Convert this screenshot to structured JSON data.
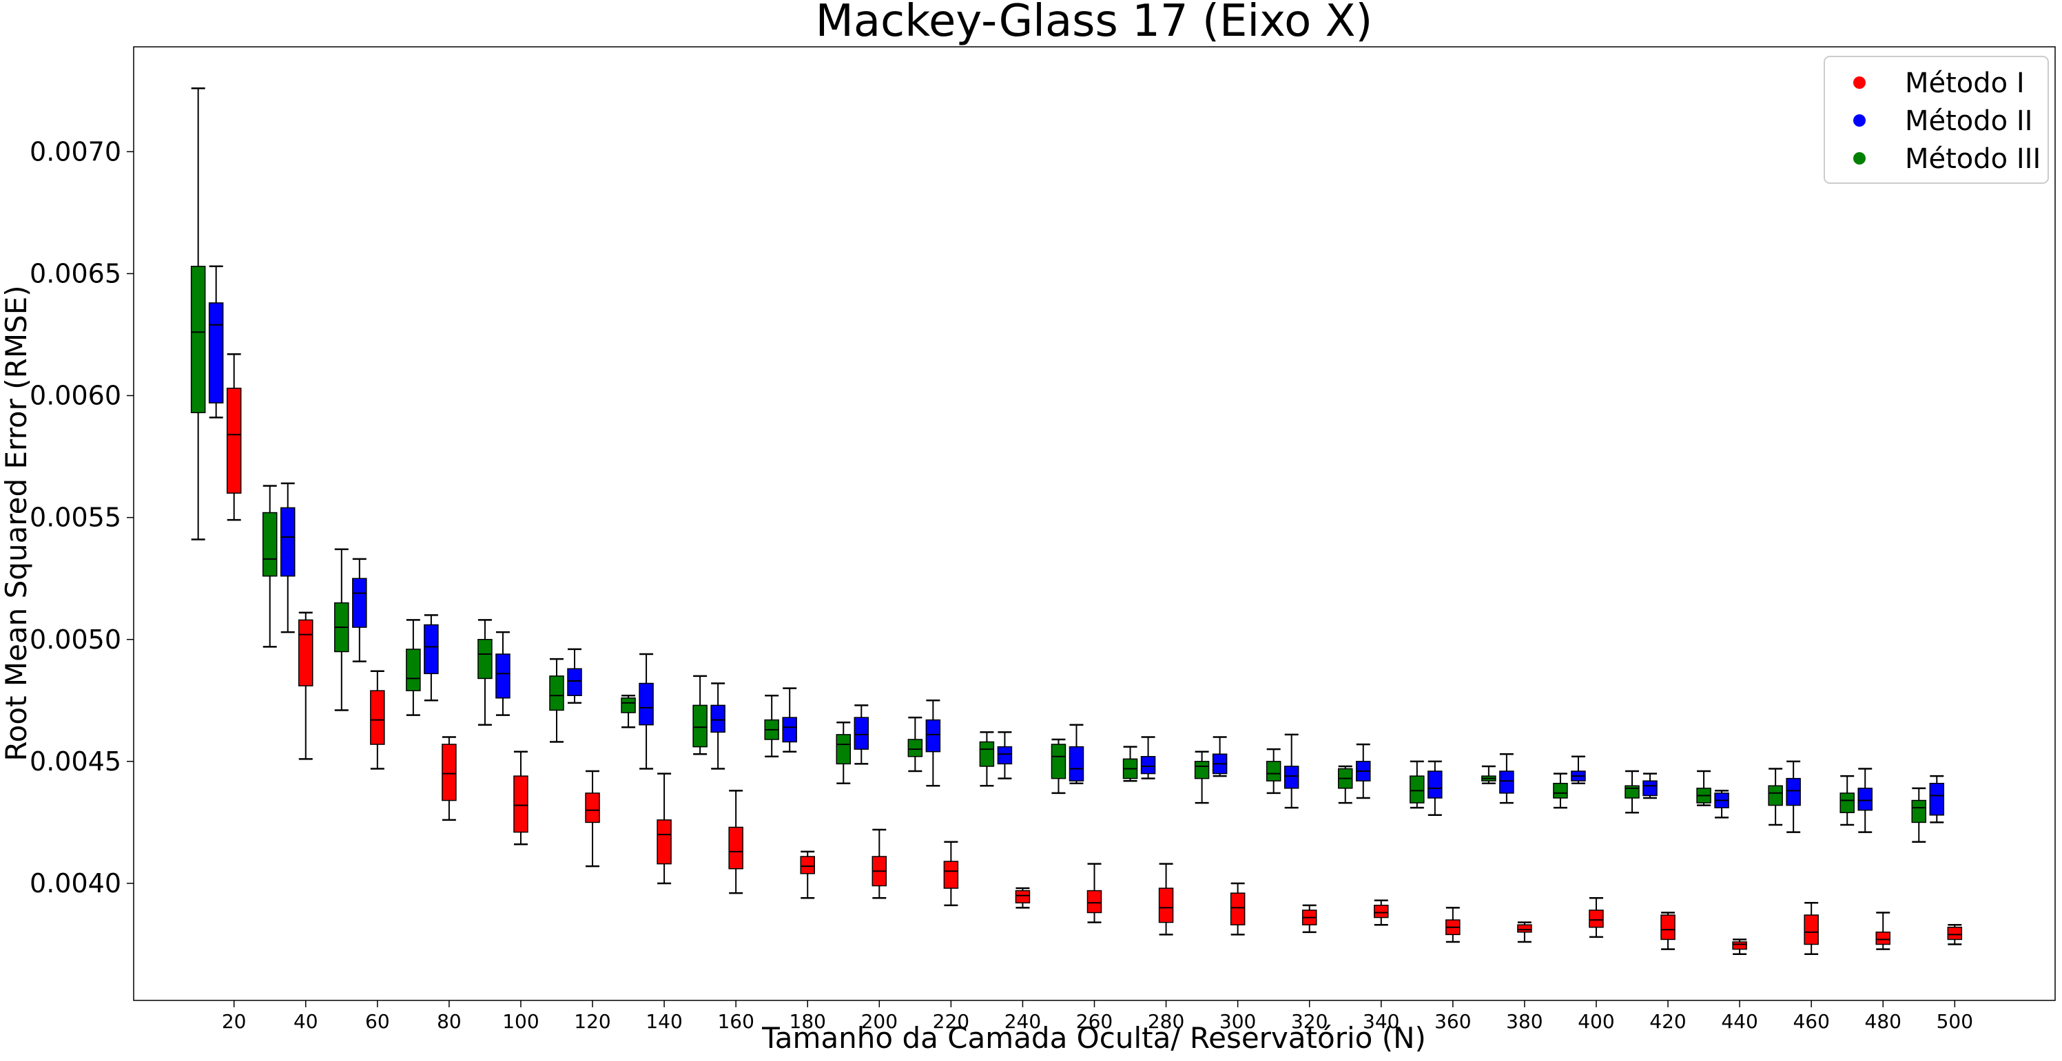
{
  "chart_data": {
    "type": "box",
    "title": "Mackey-Glass 17 (Eixo X)",
    "xlabel": "Tamanho da Camada Oculta/ Reservatório (N)",
    "ylabel": "Root Mean Squared Error (RMSE)",
    "categories": [
      20,
      40,
      60,
      80,
      100,
      120,
      140,
      160,
      180,
      200,
      220,
      240,
      260,
      280,
      300,
      320,
      340,
      360,
      380,
      400,
      420,
      440,
      460,
      480,
      500
    ],
    "xlim": [
      -8,
      528
    ],
    "ylim": [
      0.00352,
      0.00743
    ],
    "yticks": [
      0.004,
      0.0045,
      0.005,
      0.0055,
      0.006,
      0.0065,
      0.007
    ],
    "ytick_labels": [
      "0.0040",
      "0.0045",
      "0.0050",
      "0.0055",
      "0.0060",
      "0.0065",
      "0.0070"
    ],
    "legend": {
      "position": "top-right"
    },
    "series": [
      {
        "name": "Método I",
        "color": "#ff0000",
        "offset": 0,
        "boxes": [
          [
            0.00549,
            0.0056,
            0.00584,
            0.00603,
            0.00617
          ],
          [
            0.00451,
            0.00481,
            0.00502,
            0.00508,
            0.00511
          ],
          [
            0.00447,
            0.00457,
            0.00467,
            0.00479,
            0.00487
          ],
          [
            0.00426,
            0.00434,
            0.00445,
            0.00457,
            0.0046
          ],
          [
            0.00416,
            0.00421,
            0.00432,
            0.00444,
            0.00454
          ],
          [
            0.00407,
            0.00425,
            0.0043,
            0.00437,
            0.00446
          ],
          [
            0.004,
            0.00408,
            0.0042,
            0.00426,
            0.00445
          ],
          [
            0.00396,
            0.00406,
            0.00413,
            0.00423,
            0.00438
          ],
          [
            0.00394,
            0.00404,
            0.00407,
            0.00411,
            0.00413
          ],
          [
            0.00394,
            0.00399,
            0.00405,
            0.00411,
            0.00422
          ],
          [
            0.00391,
            0.00398,
            0.00405,
            0.00409,
            0.00417
          ],
          [
            0.0039,
            0.00392,
            0.00395,
            0.00397,
            0.00398
          ],
          [
            0.00384,
            0.00388,
            0.00392,
            0.00397,
            0.00408
          ],
          [
            0.00379,
            0.00384,
            0.0039,
            0.00398,
            0.00408
          ],
          [
            0.00379,
            0.00383,
            0.0039,
            0.00396,
            0.004
          ],
          [
            0.0038,
            0.00383,
            0.00386,
            0.00389,
            0.00391
          ],
          [
            0.00383,
            0.00386,
            0.00388,
            0.00391,
            0.00393
          ],
          [
            0.00376,
            0.00379,
            0.00382,
            0.00385,
            0.0039
          ],
          [
            0.00376,
            0.0038,
            0.00381,
            0.00383,
            0.00384
          ],
          [
            0.00378,
            0.00382,
            0.00385,
            0.00389,
            0.00394
          ],
          [
            0.00373,
            0.00377,
            0.00381,
            0.00387,
            0.00388
          ],
          [
            0.00371,
            0.00373,
            0.00375,
            0.00376,
            0.00377
          ],
          [
            0.00371,
            0.00375,
            0.0038,
            0.00387,
            0.00392
          ],
          [
            0.00373,
            0.00375,
            0.00377,
            0.0038,
            0.00388
          ],
          [
            0.00375,
            0.00377,
            0.00379,
            0.00382,
            0.00383
          ]
        ]
      },
      {
        "name": "Método II",
        "color": "#0000ff",
        "offset": -5,
        "boxes": [
          [
            0.00591,
            0.00597,
            0.00629,
            0.00638,
            0.00653
          ],
          [
            0.00503,
            0.00526,
            0.00542,
            0.00554,
            0.00564
          ],
          [
            0.00491,
            0.00505,
            0.00519,
            0.00525,
            0.00533
          ],
          [
            0.00475,
            0.00486,
            0.00497,
            0.00506,
            0.0051
          ],
          [
            0.00469,
            0.00476,
            0.00486,
            0.00494,
            0.00503
          ],
          [
            0.00474,
            0.00477,
            0.00483,
            0.00488,
            0.00496
          ],
          [
            0.00447,
            0.00465,
            0.00472,
            0.00482,
            0.00494
          ],
          [
            0.00447,
            0.00462,
            0.00467,
            0.00473,
            0.00482
          ],
          [
            0.00454,
            0.00458,
            0.00464,
            0.00468,
            0.0048
          ],
          [
            0.00449,
            0.00455,
            0.00461,
            0.00468,
            0.00473
          ],
          [
            0.0044,
            0.00454,
            0.00461,
            0.00467,
            0.00475
          ],
          [
            0.00443,
            0.00449,
            0.00453,
            0.00456,
            0.00462
          ],
          [
            0.00441,
            0.00442,
            0.00447,
            0.00456,
            0.00465
          ],
          [
            0.00443,
            0.00445,
            0.00448,
            0.00452,
            0.0046
          ],
          [
            0.00444,
            0.00445,
            0.00449,
            0.00453,
            0.0046
          ],
          [
            0.00431,
            0.00439,
            0.00444,
            0.00448,
            0.00461
          ],
          [
            0.00435,
            0.00442,
            0.00446,
            0.0045,
            0.00457
          ],
          [
            0.00428,
            0.00435,
            0.00439,
            0.00446,
            0.0045
          ],
          [
            0.00433,
            0.00437,
            0.00442,
            0.00446,
            0.00453
          ],
          [
            0.00441,
            0.00442,
            0.00444,
            0.00446,
            0.00452
          ],
          [
            0.00435,
            0.00436,
            0.0044,
            0.00442,
            0.00445
          ],
          [
            0.00427,
            0.00431,
            0.00434,
            0.00437,
            0.00438
          ],
          [
            0.00421,
            0.00432,
            0.00438,
            0.00443,
            0.0045
          ],
          [
            0.00421,
            0.0043,
            0.00434,
            0.00439,
            0.00447
          ],
          [
            0.00425,
            0.00428,
            0.00436,
            0.00441,
            0.00444
          ]
        ]
      },
      {
        "name": "Método III",
        "color": "#008000",
        "offset": -10,
        "boxes": [
          [
            0.00541,
            0.00593,
            0.00626,
            0.00653,
            0.00726
          ],
          [
            0.00497,
            0.00526,
            0.00533,
            0.00552,
            0.00563
          ],
          [
            0.00471,
            0.00495,
            0.00505,
            0.00515,
            0.00537
          ],
          [
            0.00469,
            0.00479,
            0.00484,
            0.00496,
            0.00508
          ],
          [
            0.00465,
            0.00484,
            0.00494,
            0.005,
            0.00508
          ],
          [
            0.00458,
            0.00471,
            0.00477,
            0.00485,
            0.00492
          ],
          [
            0.00464,
            0.0047,
            0.00474,
            0.00476,
            0.00477
          ],
          [
            0.00453,
            0.00456,
            0.00464,
            0.00473,
            0.00485
          ],
          [
            0.00452,
            0.00459,
            0.00463,
            0.00467,
            0.00477
          ],
          [
            0.00441,
            0.00449,
            0.00457,
            0.00461,
            0.00466
          ],
          [
            0.00446,
            0.00452,
            0.00455,
            0.00459,
            0.00468
          ],
          [
            0.0044,
            0.00448,
            0.00455,
            0.00458,
            0.00462
          ],
          [
            0.00437,
            0.00443,
            0.00452,
            0.00457,
            0.00459
          ],
          [
            0.00442,
            0.00443,
            0.00447,
            0.00451,
            0.00456
          ],
          [
            0.00433,
            0.00443,
            0.00448,
            0.0045,
            0.00454
          ],
          [
            0.00437,
            0.00442,
            0.00445,
            0.0045,
            0.00455
          ],
          [
            0.00433,
            0.00439,
            0.00443,
            0.00447,
            0.00448
          ],
          [
            0.00431,
            0.00433,
            0.00438,
            0.00444,
            0.0045
          ],
          [
            0.00441,
            0.00442,
            0.00443,
            0.00444,
            0.00448
          ],
          [
            0.00431,
            0.00435,
            0.00437,
            0.00441,
            0.00445
          ],
          [
            0.00429,
            0.00435,
            0.00439,
            0.0044,
            0.00446
          ],
          [
            0.00432,
            0.00433,
            0.00436,
            0.00439,
            0.00446
          ],
          [
            0.00424,
            0.00432,
            0.00437,
            0.0044,
            0.00447
          ],
          [
            0.00424,
            0.00429,
            0.00434,
            0.00437,
            0.00444
          ],
          [
            0.00417,
            0.00425,
            0.00431,
            0.00434,
            0.00439
          ]
        ]
      }
    ]
  }
}
